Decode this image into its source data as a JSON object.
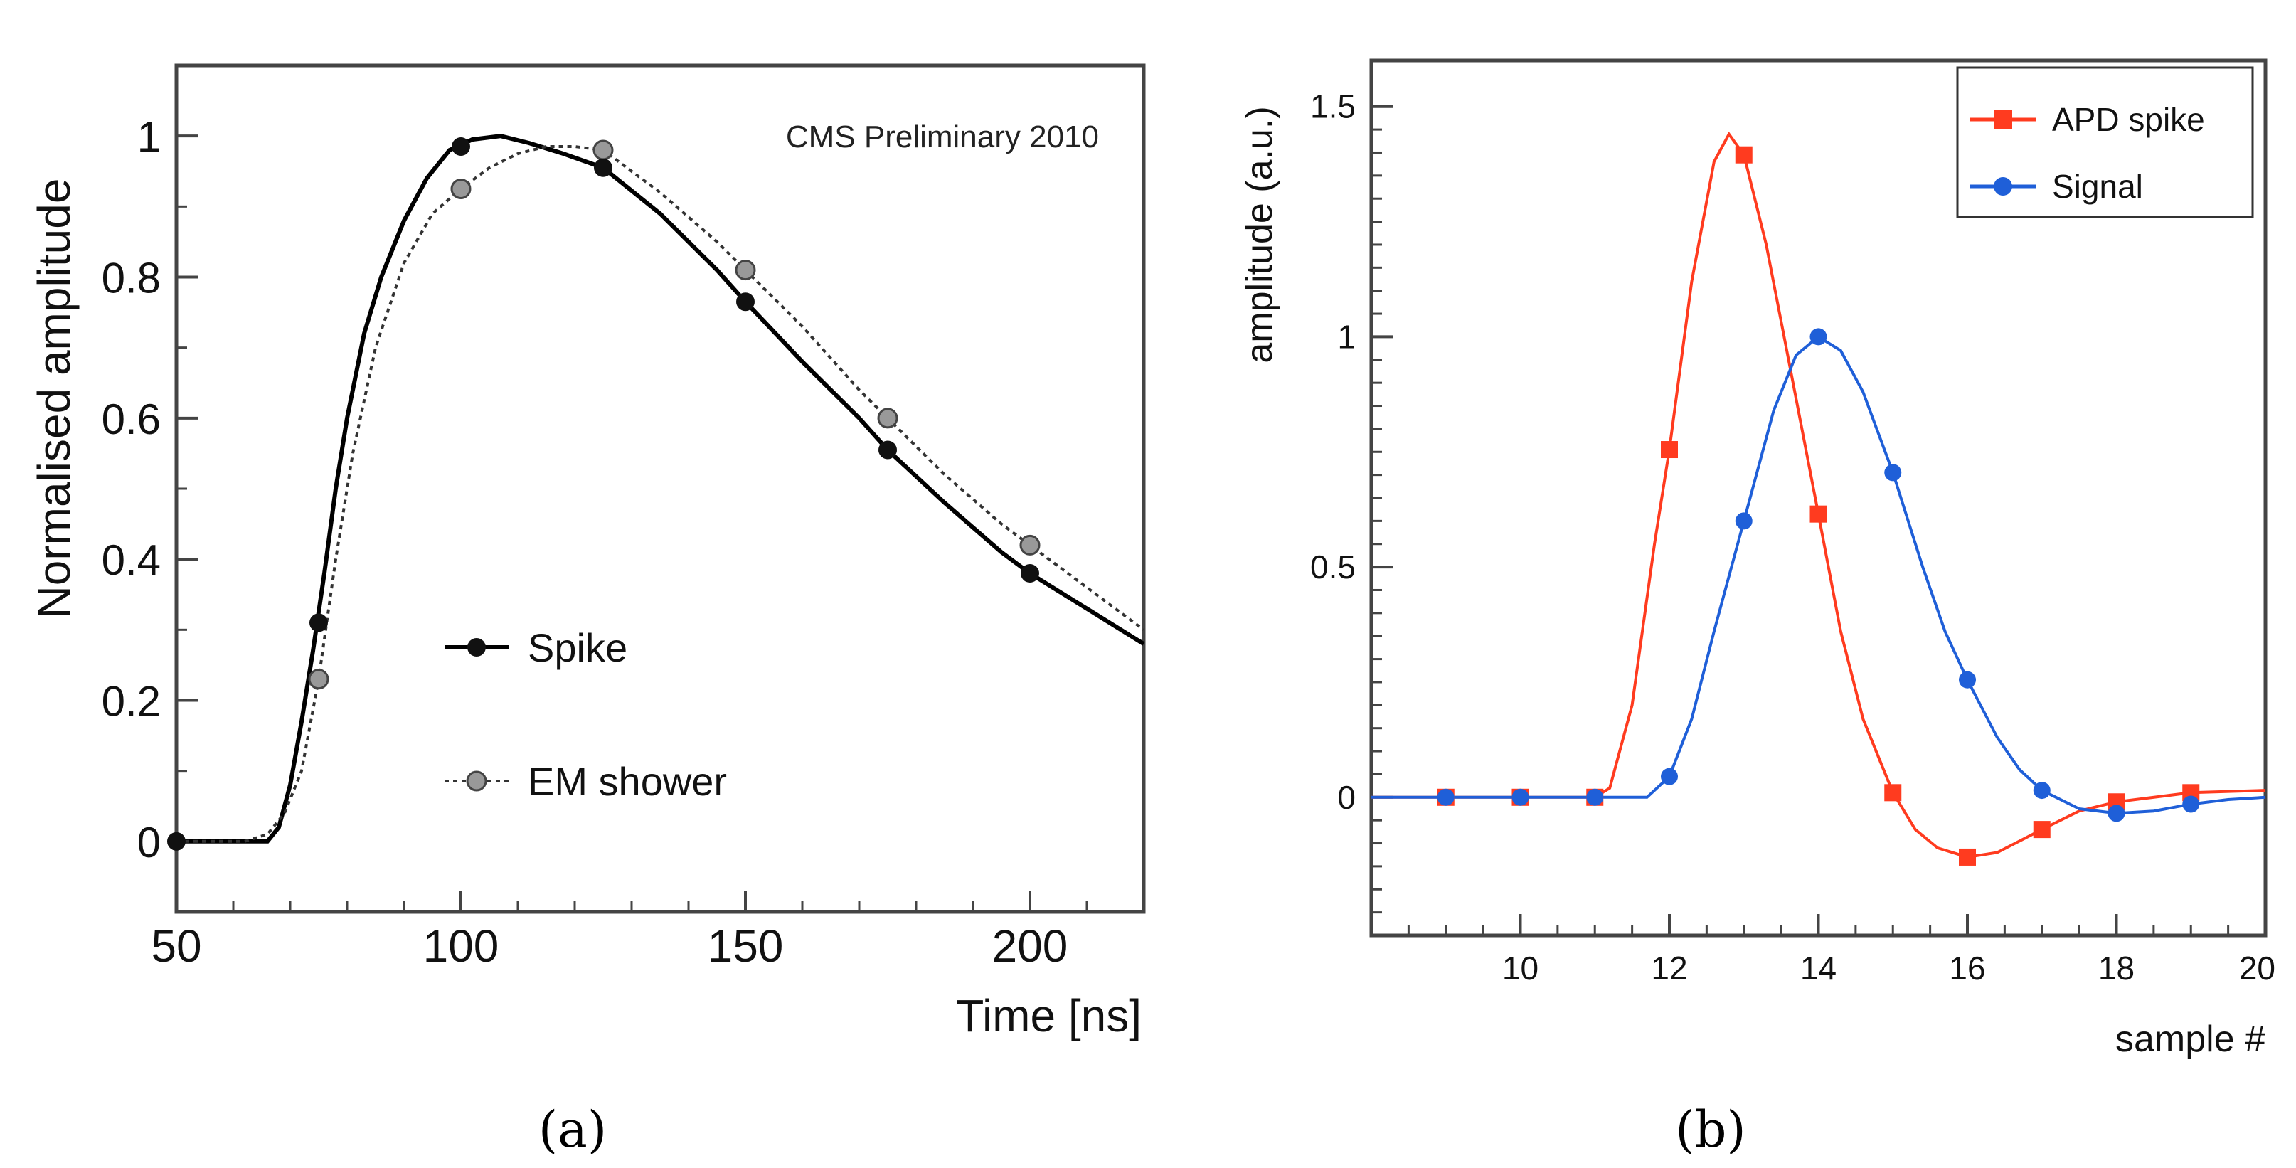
{
  "chart_data": [
    {
      "panel": "(a)",
      "type": "line",
      "annotation": "CMS Preliminary 2010",
      "xlabel": "Time [ns]",
      "ylabel": "Normalised amplitude",
      "xlim": [
        50,
        220
      ],
      "ylim": [
        -0.1,
        1.1
      ],
      "xticks": [
        50,
        100,
        150,
        200
      ],
      "yticks": [
        0,
        0.2,
        0.4,
        0.6,
        0.8,
        1
      ],
      "legend_position": "lower-center",
      "series": [
        {
          "name": "Spike",
          "style": "solid",
          "marker_color": "#111111",
          "markers": [
            [
              50,
              0.0
            ],
            [
              75,
              0.31
            ],
            [
              100,
              0.985
            ],
            [
              125,
              0.955
            ],
            [
              150,
              0.765
            ],
            [
              175,
              0.555
            ],
            [
              200,
              0.38
            ]
          ],
          "curve": [
            [
              50,
              0.0
            ],
            [
              60,
              0.0
            ],
            [
              66,
              0.0
            ],
            [
              68,
              0.02
            ],
            [
              70,
              0.08
            ],
            [
              72,
              0.17
            ],
            [
              74,
              0.27
            ],
            [
              76,
              0.38
            ],
            [
              78,
              0.5
            ],
            [
              80,
              0.6
            ],
            [
              83,
              0.72
            ],
            [
              86,
              0.8
            ],
            [
              90,
              0.88
            ],
            [
              94,
              0.94
            ],
            [
              98,
              0.98
            ],
            [
              102,
              0.995
            ],
            [
              107,
              1.0
            ],
            [
              112,
              0.99
            ],
            [
              118,
              0.975
            ],
            [
              125,
              0.955
            ],
            [
              135,
              0.89
            ],
            [
              145,
              0.81
            ],
            [
              150,
              0.765
            ],
            [
              160,
              0.68
            ],
            [
              170,
              0.6
            ],
            [
              175,
              0.555
            ],
            [
              185,
              0.48
            ],
            [
              195,
              0.41
            ],
            [
              200,
              0.38
            ],
            [
              210,
              0.33
            ],
            [
              220,
              0.28
            ]
          ]
        },
        {
          "name": "EM shower",
          "style": "dotted",
          "marker_color": "#999999",
          "markers": [
            [
              75,
              0.23
            ],
            [
              100,
              0.925
            ],
            [
              125,
              0.98
            ],
            [
              150,
              0.81
            ],
            [
              175,
              0.6
            ],
            [
              200,
              0.42
            ]
          ],
          "curve": [
            [
              50,
              0.0
            ],
            [
              62,
              0.0
            ],
            [
              66,
              0.01
            ],
            [
              69,
              0.04
            ],
            [
              72,
              0.1
            ],
            [
              75,
              0.23
            ],
            [
              78,
              0.4
            ],
            [
              81,
              0.55
            ],
            [
              85,
              0.7
            ],
            [
              90,
              0.82
            ],
            [
              95,
              0.89
            ],
            [
              100,
              0.925
            ],
            [
              105,
              0.955
            ],
            [
              110,
              0.975
            ],
            [
              115,
              0.985
            ],
            [
              120,
              0.985
            ],
            [
              125,
              0.98
            ],
            [
              135,
              0.92
            ],
            [
              145,
              0.85
            ],
            [
              150,
              0.81
            ],
            [
              160,
              0.73
            ],
            [
              170,
              0.64
            ],
            [
              175,
              0.6
            ],
            [
              185,
              0.52
            ],
            [
              195,
              0.45
            ],
            [
              200,
              0.42
            ],
            [
              210,
              0.36
            ],
            [
              220,
              0.3
            ]
          ]
        }
      ]
    },
    {
      "panel": "(b)",
      "type": "line",
      "xlabel": "sample #",
      "ylabel": "amplitude (a.u.)",
      "xlim": [
        8,
        20
      ],
      "ylim": [
        -0.3,
        1.6
      ],
      "xticks": [
        10,
        12,
        14,
        16,
        18,
        20
      ],
      "yticks": [
        0,
        0.5,
        1,
        1.5
      ],
      "legend_position": "top-right",
      "series": [
        {
          "name": "APD spike",
          "color": "#ff3b1f",
          "marker": "square",
          "markers": [
            [
              9,
              0.0
            ],
            [
              10,
              0.0
            ],
            [
              11,
              0.0
            ],
            [
              12,
              0.755
            ],
            [
              13,
              1.395
            ],
            [
              14,
              0.615
            ],
            [
              15,
              0.01
            ],
            [
              16,
              -0.13
            ],
            [
              17,
              -0.07
            ],
            [
              18,
              -0.01
            ],
            [
              19,
              0.01
            ]
          ],
          "curve": [
            [
              8,
              0.0
            ],
            [
              11,
              0.0
            ],
            [
              11.2,
              0.02
            ],
            [
              11.5,
              0.2
            ],
            [
              11.8,
              0.55
            ],
            [
              12,
              0.755
            ],
            [
              12.3,
              1.12
            ],
            [
              12.6,
              1.38
            ],
            [
              12.8,
              1.44
            ],
            [
              13,
              1.395
            ],
            [
              13.3,
              1.2
            ],
            [
              13.6,
              0.95
            ],
            [
              14,
              0.615
            ],
            [
              14.3,
              0.36
            ],
            [
              14.6,
              0.17
            ],
            [
              15,
              0.01
            ],
            [
              15.3,
              -0.07
            ],
            [
              15.6,
              -0.11
            ],
            [
              16,
              -0.13
            ],
            [
              16.4,
              -0.12
            ],
            [
              17,
              -0.07
            ],
            [
              17.5,
              -0.03
            ],
            [
              18,
              -0.01
            ],
            [
              19,
              0.01
            ],
            [
              20,
              0.015
            ]
          ]
        },
        {
          "name": "Signal",
          "color": "#1f5fd8",
          "marker": "circle",
          "markers": [
            [
              9,
              0.0
            ],
            [
              10,
              0.0
            ],
            [
              11,
              0.0
            ],
            [
              12,
              0.045
            ],
            [
              13,
              0.6
            ],
            [
              14,
              1.0
            ],
            [
              15,
              0.705
            ],
            [
              16,
              0.255
            ],
            [
              17,
              0.015
            ],
            [
              18,
              -0.035
            ],
            [
              19,
              -0.015
            ]
          ],
          "curve": [
            [
              8,
              0.0
            ],
            [
              11.7,
              0.0
            ],
            [
              12,
              0.045
            ],
            [
              12.3,
              0.17
            ],
            [
              12.6,
              0.36
            ],
            [
              13,
              0.6
            ],
            [
              13.4,
              0.84
            ],
            [
              13.7,
              0.96
            ],
            [
              14,
              1.0
            ],
            [
              14.3,
              0.97
            ],
            [
              14.6,
              0.88
            ],
            [
              15,
              0.705
            ],
            [
              15.4,
              0.5
            ],
            [
              15.7,
              0.36
            ],
            [
              16,
              0.255
            ],
            [
              16.4,
              0.13
            ],
            [
              16.7,
              0.06
            ],
            [
              17,
              0.015
            ],
            [
              17.5,
              -0.025
            ],
            [
              18,
              -0.035
            ],
            [
              18.5,
              -0.03
            ],
            [
              19,
              -0.015
            ],
            [
              19.5,
              -0.005
            ],
            [
              20,
              0.0
            ]
          ]
        }
      ]
    }
  ],
  "captions": {
    "a": "(a)",
    "b": "(b)"
  }
}
